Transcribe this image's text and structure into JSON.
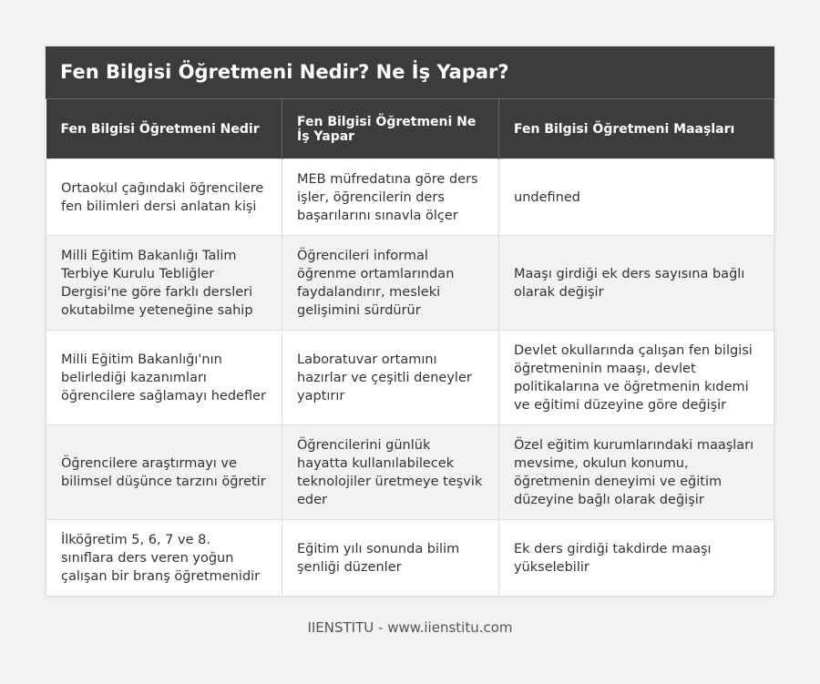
{
  "table": {
    "title": "Fen Bilgisi Öğretmeni Nedir? Ne İş Yapar?",
    "headers": [
      "Fen Bilgisi Öğretmeni Nedir",
      "Fen Bilgisi Öğretmeni Ne İş Yapar",
      "Fen Bilgisi Öğretmeni Maaşları"
    ],
    "rows": [
      [
        "Ortaokul çağındaki öğrencilere fen bilimleri dersi anlatan kişi",
        "MEB müfredatına göre ders işler, öğrencilerin ders başarılarını sınavla ölçer",
        "undefined"
      ],
      [
        "Milli Eğitim Bakanlığı Talim Terbiye Kurulu Tebliğler Dergisi'ne göre farklı dersleri okutabilme yeteneğine sahip",
        "Öğrencileri informal öğrenme ortamlarından faydalandırır, mesleki gelişimini sürdürür",
        "Maaşı girdiği ek ders sayısına bağlı olarak değişir"
      ],
      [
        "Milli Eğitim Bakanlığı'nın belirlediği kazanımları öğrencilere sağlamayı hedefler",
        "Laboratuvar ortamını hazırlar ve çeşitli deneyler yaptırır",
        "Devlet okullarında çalışan fen bilgisi öğretmeninin maaşı, devlet politikalarına ve öğretmenin kıdemi ve eğitimi düzeyine göre değişir"
      ],
      [
        "Öğrencilere araştırmayı ve bilimsel düşünce tarzını öğretir",
        "Öğrencilerini günlük hayatta kullanılabilecek teknolojiler üretmeye teşvik eder",
        "Özel eğitim kurumlarındaki maaşları mevsime, okulun konumu, öğretmenin deneyimi ve eğitim düzeyine bağlı olarak değişir"
      ],
      [
        "İlköğretim 5, 6, 7 ve 8. sınıflara ders veren yoğun çalışan bir branş öğretmenidir",
        "Eğitim yılı sonunda bilim şenliği düzenler",
        "Ek ders girdiği takdirde maaşı yükselebilir"
      ]
    ]
  },
  "footer": "IIENSTITU - www.iienstitu.com"
}
